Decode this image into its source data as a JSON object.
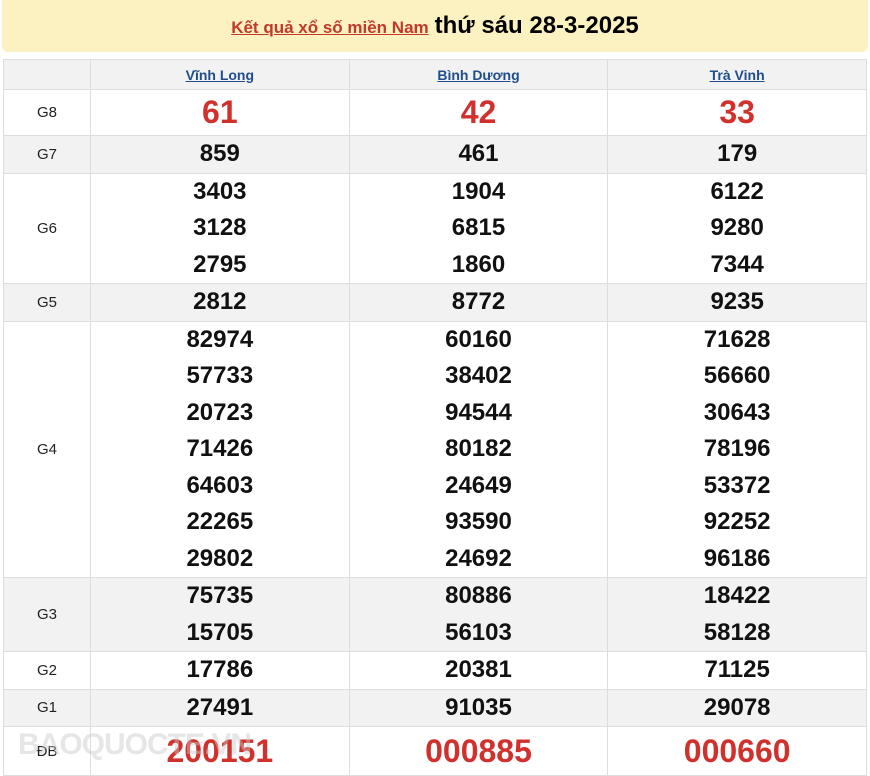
{
  "title": {
    "link": "Kết quả xổ số miền Nam",
    "date": "thứ sáu 28-3-2025"
  },
  "provinces": [
    "Vĩnh Long",
    "Bình Dương",
    "Trà Vinh"
  ],
  "prizes": [
    {
      "label": "G8",
      "values": [
        [
          "61"
        ],
        [
          "42"
        ],
        [
          "33"
        ]
      ],
      "red": true
    },
    {
      "label": "G7",
      "values": [
        [
          "859"
        ],
        [
          "461"
        ],
        [
          "179"
        ]
      ]
    },
    {
      "label": "G6",
      "values": [
        [
          "3403",
          "3128",
          "2795"
        ],
        [
          "1904",
          "6815",
          "1860"
        ],
        [
          "6122",
          "9280",
          "7344"
        ]
      ]
    },
    {
      "label": "G5",
      "values": [
        [
          "2812"
        ],
        [
          "8772"
        ],
        [
          "9235"
        ]
      ]
    },
    {
      "label": "G4",
      "values": [
        [
          "82974",
          "57733",
          "20723",
          "71426",
          "64603",
          "22265",
          "29802"
        ],
        [
          "60160",
          "38402",
          "94544",
          "80182",
          "24649",
          "93590",
          "24692"
        ],
        [
          "71628",
          "56660",
          "30643",
          "78196",
          "53372",
          "92252",
          "96186"
        ]
      ]
    },
    {
      "label": "G3",
      "values": [
        [
          "75735",
          "15705"
        ],
        [
          "80886",
          "56103"
        ],
        [
          "18422",
          "58128"
        ]
      ]
    },
    {
      "label": "G2",
      "values": [
        [
          "17786"
        ],
        [
          "20381"
        ],
        [
          "71125"
        ]
      ]
    },
    {
      "label": "G1",
      "values": [
        [
          "27491"
        ],
        [
          "91035"
        ],
        [
          "29078"
        ]
      ]
    },
    {
      "label": "ĐB",
      "values": [
        [
          "200151"
        ],
        [
          "000885"
        ],
        [
          "000660"
        ]
      ],
      "red": true
    }
  ],
  "watermark": "BAOQUOCTE.VN",
  "colors": {
    "accent_red": "#d0312d",
    "header_bg": "#fcf1c0",
    "link_blue": "#1f4e8c"
  }
}
